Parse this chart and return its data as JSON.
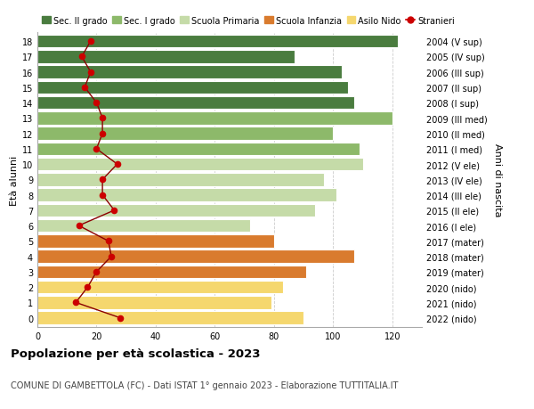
{
  "ages": [
    0,
    1,
    2,
    3,
    4,
    5,
    6,
    7,
    8,
    9,
    10,
    11,
    12,
    13,
    14,
    15,
    16,
    17,
    18
  ],
  "right_labels": [
    "2022 (nido)",
    "2021 (nido)",
    "2020 (nido)",
    "2019 (mater)",
    "2018 (mater)",
    "2017 (mater)",
    "2016 (I ele)",
    "2015 (II ele)",
    "2014 (III ele)",
    "2013 (IV ele)",
    "2012 (V ele)",
    "2011 (I med)",
    "2010 (II med)",
    "2009 (III med)",
    "2008 (I sup)",
    "2007 (II sup)",
    "2006 (III sup)",
    "2005 (IV sup)",
    "2004 (V sup)"
  ],
  "bar_values": [
    90,
    79,
    83,
    91,
    107,
    80,
    72,
    94,
    101,
    97,
    110,
    109,
    100,
    120,
    107,
    105,
    103,
    87,
    122
  ],
  "bar_colors": [
    "#f5d76e",
    "#f5d76e",
    "#f5d76e",
    "#d97b2e",
    "#d97b2e",
    "#d97b2e",
    "#c5dba8",
    "#c5dba8",
    "#c5dba8",
    "#c5dba8",
    "#c5dba8",
    "#8db96a",
    "#8db96a",
    "#8db96a",
    "#4a7c3f",
    "#4a7c3f",
    "#4a7c3f",
    "#4a7c3f",
    "#4a7c3f"
  ],
  "stranieri_values": [
    28,
    13,
    17,
    20,
    25,
    24,
    14,
    26,
    22,
    22,
    27,
    20,
    22,
    22,
    20,
    16,
    18,
    15,
    18
  ],
  "xlim": [
    0,
    130
  ],
  "xticks": [
    0,
    20,
    40,
    60,
    80,
    100,
    120
  ],
  "legend_items": [
    {
      "label": "Sec. II grado",
      "color": "#4a7c3f"
    },
    {
      "label": "Sec. I grado",
      "color": "#8db96a"
    },
    {
      "label": "Scuola Primaria",
      "color": "#c5dba8"
    },
    {
      "label": "Scuola Infanzia",
      "color": "#d97b2e"
    },
    {
      "label": "Asilo Nido",
      "color": "#f5d76e"
    },
    {
      "label": "Stranieri",
      "color": "#cc0000"
    }
  ],
  "title": "Popolazione per età scolastica - 2023",
  "subtitle": "COMUNE DI GAMBETTOLA (FC) - Dati ISTAT 1° gennaio 2023 - Elaborazione TUTTITALIA.IT",
  "ylabel_left": "Età alunni",
  "ylabel_right": "Anni di nascita",
  "background_color": "#ffffff",
  "bar_edge_color": "#ffffff",
  "grid_color": "#cccccc",
  "stranieri_line_color": "#8b0000",
  "stranieri_dot_color": "#cc0000"
}
